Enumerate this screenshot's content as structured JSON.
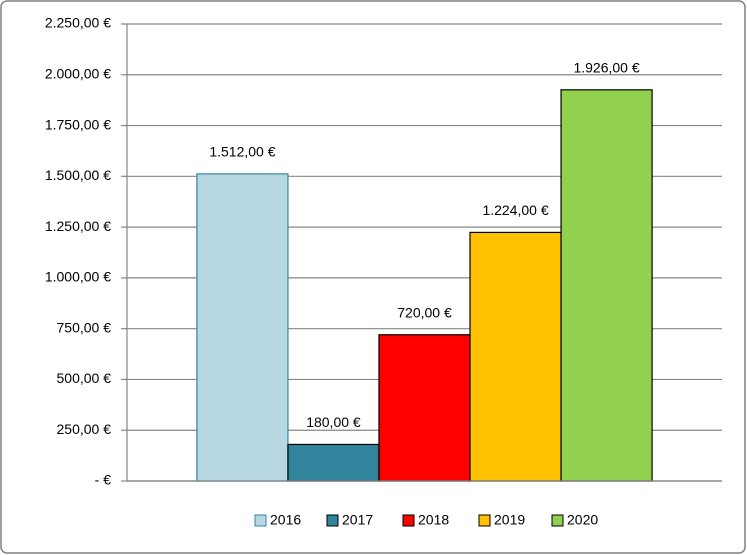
{
  "chart_data": {
    "type": "bar",
    "categories": [
      null
    ],
    "series": [
      {
        "name": "2016",
        "color": "#b7d7e3",
        "values": [
          1512
        ],
        "value_labels": [
          "1.512,00 €"
        ]
      },
      {
        "name": "2017",
        "color": "#31849b",
        "values": [
          180
        ],
        "value_labels": [
          "180,00 €"
        ]
      },
      {
        "name": "2018",
        "color": "#ff0000",
        "values": [
          720
        ],
        "value_labels": [
          "720,00 €"
        ]
      },
      {
        "name": "2019",
        "color": "#ffc000",
        "values": [
          1224
        ],
        "value_labels": [
          "1.224,00 €"
        ]
      },
      {
        "name": "2020",
        "color": "#92d050",
        "values": [
          1926
        ],
        "value_labels": [
          "1.926,00 €"
        ]
      }
    ],
    "ylim": [
      0,
      2250
    ],
    "yticks": [
      {
        "value": 0,
        "label": "-  €"
      },
      {
        "value": 250,
        "label": "250,00 €"
      },
      {
        "value": 500,
        "label": "500,00 €"
      },
      {
        "value": 750,
        "label": "750,00 €"
      },
      {
        "value": 1000,
        "label": "1.000,00 €"
      },
      {
        "value": 1250,
        "label": "1.250,00 €"
      },
      {
        "value": 1500,
        "label": "1.500,00 €"
      },
      {
        "value": 1750,
        "label": "1.750,00 €"
      },
      {
        "value": 2000,
        "label": "2.000,00 €"
      },
      {
        "value": 2250,
        "label": "2.250,00 €"
      }
    ],
    "grid": true,
    "legend": "bottom"
  }
}
